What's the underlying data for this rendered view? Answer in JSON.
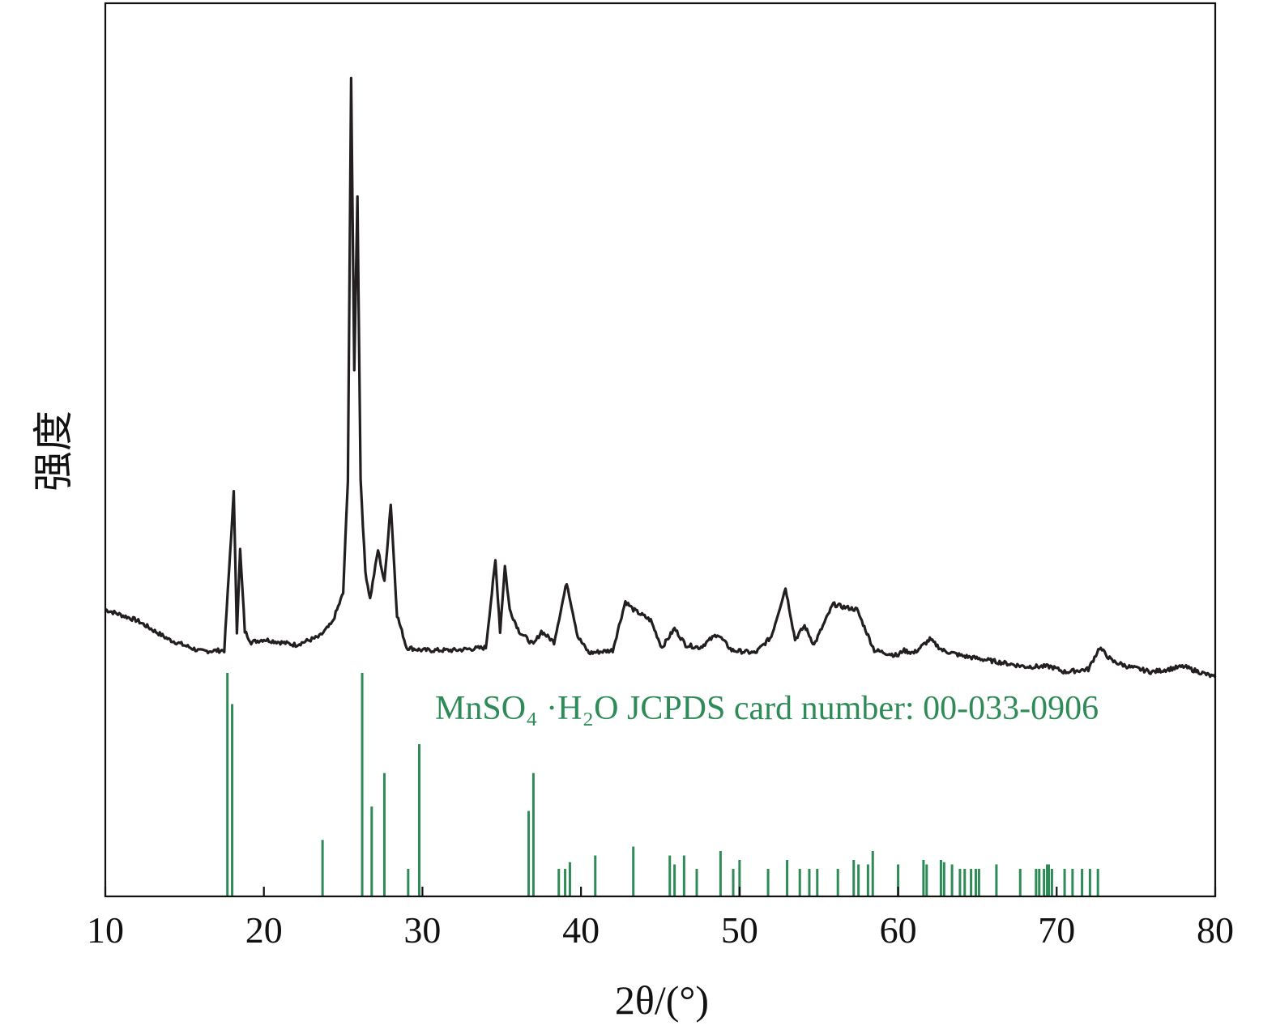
{
  "chart_data": {
    "type": "line",
    "xlabel": "2θ/(°)",
    "ylabel": "强度",
    "xlim": [
      10,
      80
    ],
    "x_ticks": [
      "10",
      "20",
      "30",
      "40",
      "50",
      "60",
      "70",
      "80"
    ],
    "y_ticks": [],
    "grid": false,
    "colors": {
      "pattern": "#231f20",
      "reference": "#2e8b57"
    },
    "series": [
      {
        "values_note": "",
        "x": [
          10,
          12,
          14,
          16,
          17.5,
          18.1,
          18.3,
          18.5,
          18.8,
          19.2,
          20,
          22,
          23.5,
          24.3,
          25,
          25.3,
          25.5,
          25.7,
          25.9,
          26.1,
          26.4,
          26.7,
          27.2,
          27.6,
          28.0,
          28.4,
          29,
          30,
          32,
          34,
          34.6,
          34.9,
          35.2,
          35.5,
          36.1,
          37.0,
          37.5,
          38.3,
          39.1,
          39.8,
          40.5,
          42,
          42.8,
          43.3,
          44.4,
          45.1,
          45.9,
          46.6,
          47.5,
          48.6,
          49.5,
          51,
          52.0,
          52.9,
          53.5,
          54.1,
          54.7,
          55.9,
          56.5,
          57.4,
          58.5,
          60,
          60.3,
          61,
          62.0,
          62.8,
          64,
          66,
          68,
          69.6,
          70.5,
          72,
          72.7,
          73.5,
          74.5,
          76,
          78,
          80
        ],
        "y": [
          16,
          14,
          10.5,
          8.3,
          8.5,
          37.5,
          12,
          27,
          12,
          10,
          10.5,
          9.5,
          11,
          13.5,
          19,
          40,
          114,
          60,
          92,
          40,
          23,
          18,
          27,
          21,
          35.5,
          15,
          9,
          8.5,
          8.5,
          9,
          25,
          12,
          24,
          16,
          12,
          9.5,
          12,
          10,
          21,
          11,
          8,
          8.5,
          17.5,
          16,
          14,
          9,
          12.5,
          9.5,
          9,
          11.5,
          8.5,
          8,
          11,
          20,
          10.5,
          13,
          9.5,
          17,
          16.5,
          16,
          8.5,
          7.5,
          8.5,
          8,
          10.5,
          8.5,
          7.5,
          6.5,
          5.5,
          5.5,
          4.5,
          5,
          9,
          6.5,
          5.5,
          4.5,
          5.5,
          3.5
        ]
      },
      {
        "name": "MnSO₄·H₂O JCPDS card number: 00-033-0906",
        "type": "stick",
        "x": [
          17.7,
          18.0,
          23.7,
          26.2,
          26.8,
          27.6,
          29.1,
          29.8,
          36.7,
          37.0,
          38.6,
          39.0,
          39.3,
          40.9,
          43.3,
          45.6,
          45.9,
          46.5,
          47.3,
          48.8,
          49.6,
          50.0,
          51.8,
          53.0,
          53.8,
          54.4,
          54.9,
          56.2,
          57.2,
          57.5,
          58.1,
          58.4,
          60.0,
          61.6,
          61.8,
          62.7,
          62.9,
          63.4,
          63.9,
          64.2,
          64.6,
          64.9,
          65.1,
          66.2,
          67.7,
          68.7,
          68.9,
          69.2,
          69.4,
          69.5,
          69.7,
          70.5,
          71.0,
          71.6,
          72.1,
          72.6
        ],
        "y": [
          100,
          86,
          25,
          100,
          40,
          55,
          12,
          68,
          38,
          55,
          12,
          12,
          15,
          18,
          22,
          18,
          14,
          18,
          12,
          20,
          12,
          16,
          12,
          16,
          12,
          12,
          12,
          12,
          16,
          14,
          14,
          20,
          14,
          16,
          14,
          16,
          15,
          14,
          12,
          12,
          12,
          12,
          12,
          14,
          12,
          12,
          12,
          12,
          14,
          14,
          12,
          12,
          12,
          12,
          12,
          12
        ]
      }
    ],
    "annotation": {
      "text": "MnSO₄ ·H₂O JCPDS card number: 00-033-0906"
    }
  }
}
